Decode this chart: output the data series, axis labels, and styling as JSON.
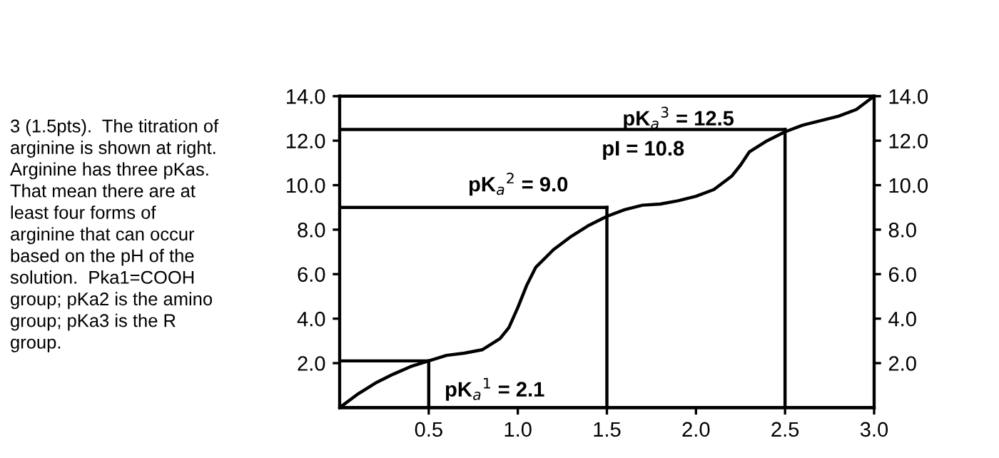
{
  "chart_data": {
    "type": "line",
    "x": [
      0,
      0.1,
      0.2,
      0.3,
      0.4,
      0.5,
      0.6,
      0.7,
      0.8,
      0.9,
      0.95,
      1.0,
      1.05,
      1.1,
      1.2,
      1.3,
      1.4,
      1.5,
      1.6,
      1.7,
      1.8,
      1.9,
      2.0,
      2.1,
      2.2,
      2.25,
      2.3,
      2.4,
      2.5,
      2.6,
      2.7,
      2.8,
      2.9,
      3.0
    ],
    "series": [
      {
        "color": "#000000",
        "values": [
          0,
          0.6,
          1.1,
          1.5,
          1.85,
          2.1,
          2.35,
          2.45,
          2.6,
          3.1,
          3.6,
          4.5,
          5.5,
          6.3,
          7.1,
          7.7,
          8.2,
          8.6,
          8.9,
          9.1,
          9.15,
          9.3,
          9.5,
          9.8,
          10.4,
          10.9,
          11.5,
          12.0,
          12.4,
          12.7,
          12.9,
          13.1,
          13.4,
          14.0
        ]
      }
    ],
    "xlim": [
      0,
      3.0
    ],
    "xticks": [
      0.5,
      {
        "value": 1,
        "label": "1.0"
      },
      1.5,
      {
        "value": 2,
        "label": "2.0"
      },
      2.5,
      {
        "value": 3,
        "label": "3.0"
      }
    ],
    "ylim": [
      0,
      14
    ],
    "yticks": [
      {
        "value": 2,
        "label": "2.0"
      },
      {
        "value": 4,
        "label": "4.0"
      },
      {
        "value": 6,
        "label": "6.0"
      },
      {
        "value": 8,
        "label": "8.0"
      },
      {
        "value": 10,
        "label": "10.0"
      },
      {
        "value": 12,
        "label": "12.0"
      },
      {
        "value": 14,
        "label": "14.0"
      }
    ],
    "y2lim": [
      0,
      14
    ],
    "y2ticks": [
      {
        "value": 2,
        "label": "2.0"
      },
      {
        "value": 4,
        "label": "4.0"
      },
      {
        "value": 6,
        "label": "6.0"
      },
      {
        "value": 8,
        "label": "8.0"
      },
      {
        "value": 10,
        "label": "10.0"
      },
      {
        "value": 12,
        "label": "12.0"
      },
      {
        "value": 14,
        "label": "14.0"
      }
    ],
    "ref_lines": [
      {
        "axis": "y",
        "value": 2.1
      },
      {
        "axis": "y",
        "value": 9.0
      },
      {
        "axis": "y",
        "value": 12.5
      },
      {
        "axis": "x",
        "value": 0.5
      },
      {
        "axis": "x",
        "value": 1.5
      },
      {
        "axis": "x",
        "value": 2.5
      }
    ],
    "annotations": [
      {
        "text": "pK$_{a}$$^{1}$ = 2.1",
        "x": 0.5,
        "y": 2.1
      },
      {
        "text": "pK$_{a}$$^{2}$ = 9.0",
        "x": 1.5,
        "y": 9.0
      },
      {
        "text": "pK$_{a}$$^{3}$ = 12.5",
        "x": 2.5,
        "y": 12.5
      },
      {
        "text": "pI = 10.8",
        "x": 2.25,
        "y": 10.8
      },
      "3 (1.5pts).  The titration of\narginine is shown at right.\nArginine has three pKas.\nThat mean there are at\nleast four forms of\narginine that can occur\nbased on the pH of the\nsolution.  Pka1=COOH\ngroup; pKa2 is the amino\ngroup; pKa3 is the R\ngroup."
    ],
    "grid": false,
    "legend": false,
    "marker": "none",
    "line_style": "solid"
  }
}
